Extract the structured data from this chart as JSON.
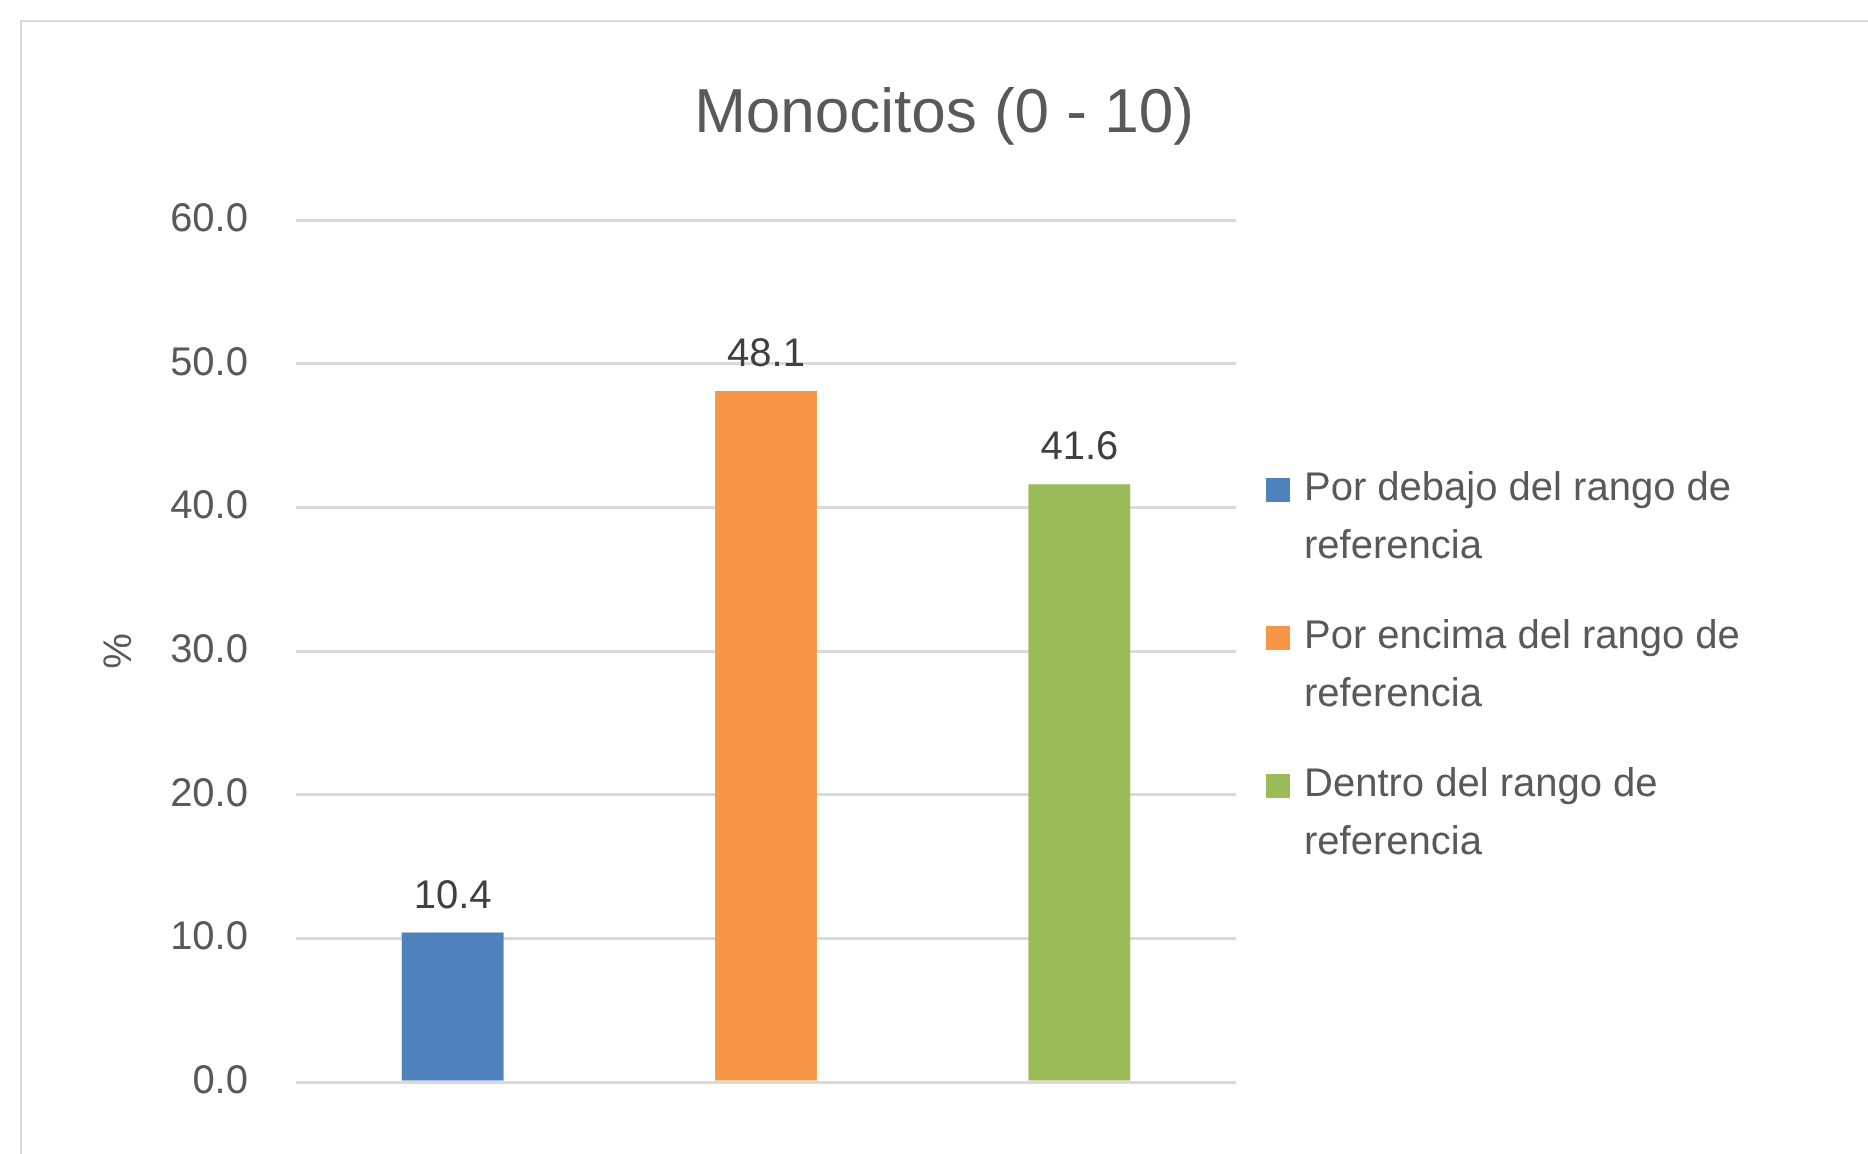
{
  "chart_data": {
    "type": "bar",
    "title": "Monocitos (0 - 10)",
    "ylabel": "%",
    "categories": [
      null
    ],
    "series": [
      {
        "name": "Por debajo del rango de referencia",
        "color": "#4f81bd",
        "values": [
          10.4
        ]
      },
      {
        "name": "Por encima del rango de referencia",
        "color": "#f79646",
        "values": [
          48.1
        ]
      },
      {
        "name": "Dentro del rango de referencia",
        "color": "#9bbb59",
        "values": [
          41.6
        ]
      }
    ],
    "ylim": [
      0,
      60
    ],
    "yticks": [
      {
        "value": 0,
        "label": "0.0"
      },
      {
        "value": 10,
        "label": "10.0"
      },
      {
        "value": 20,
        "label": "20.0"
      },
      {
        "value": 30,
        "label": "30.0"
      },
      {
        "value": 40,
        "label": "40.0"
      },
      {
        "value": 50,
        "label": "50.0"
      },
      {
        "value": 60,
        "label": "60.0"
      }
    ],
    "grid": "y",
    "legend": "right",
    "data_labels": true
  }
}
